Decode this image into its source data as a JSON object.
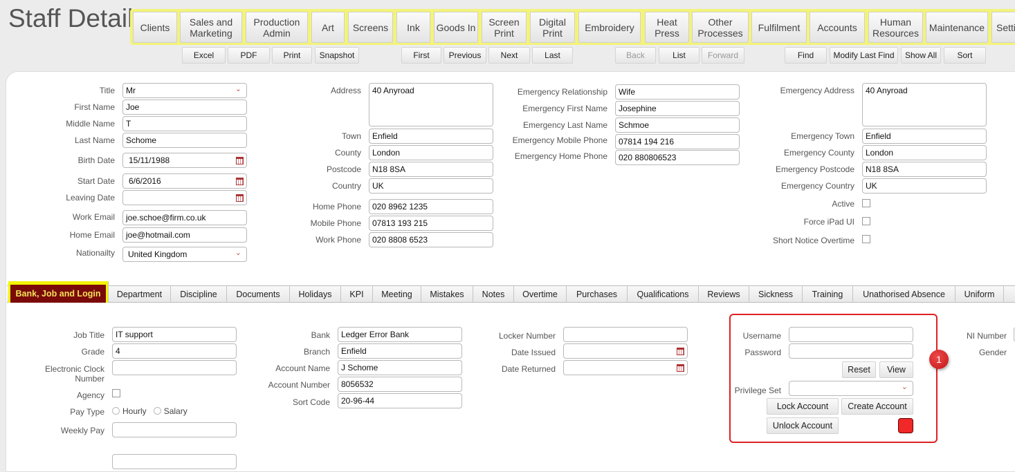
{
  "page_title": "Staff Detail",
  "nav": [
    "Clients",
    "Sales and Marketing",
    "Production Admin",
    "Art",
    "Screens",
    "Ink",
    "Goods In",
    "Screen Print",
    "Digital Print",
    "Embroidery",
    "Heat Press",
    "Other Processes",
    "Fulfilment",
    "Accounts",
    "Human Resources",
    "Maintenance",
    "Setti"
  ],
  "toolbar": {
    "export": [
      "Excel",
      "PDF",
      "Print",
      "Snapshot"
    ],
    "records": [
      "First",
      "Previous",
      "Next",
      "Last"
    ],
    "history": [
      "Back",
      "List",
      "Forward"
    ],
    "find": [
      "Find",
      "Modify Last Find",
      "Show All",
      "Sort"
    ]
  },
  "personal": {
    "title": {
      "label": "Title",
      "value": "Mr"
    },
    "first_name": {
      "label": "First Name",
      "value": "Joe"
    },
    "middle_name": {
      "label": "Middle Name",
      "value": "T"
    },
    "last_name": {
      "label": "Last Name",
      "value": "Schome"
    },
    "birth_date": {
      "label": "Birth Date",
      "value": "15/11/1988"
    },
    "start_date": {
      "label": "Start Date",
      "value": "6/6/2016"
    },
    "leaving_date": {
      "label": "Leaving Date",
      "value": ""
    },
    "work_email": {
      "label": "Work Email",
      "value": "joe.schoe@firm.co.uk"
    },
    "home_email": {
      "label": "Home Email",
      "value": "joe@hotmail.com"
    },
    "nationality": {
      "label": "Nationailty",
      "value": "United Kingdom"
    }
  },
  "address": {
    "address": {
      "label": "Address",
      "value": "40 Anyroad"
    },
    "town": {
      "label": "Town",
      "value": "Enfield"
    },
    "county": {
      "label": "County",
      "value": "London"
    },
    "postcode": {
      "label": "Postcode",
      "value": "N18 8SA"
    },
    "country": {
      "label": "Country",
      "value": "UK"
    },
    "home_phone": {
      "label": "Home Phone",
      "value": "020 8962 1235"
    },
    "mobile_phone": {
      "label": "Mobile Phone",
      "value": "07813 193 215"
    },
    "work_phone": {
      "label": "Work Phone",
      "value": "020 8808 6523"
    }
  },
  "emergency": {
    "relationship": {
      "label": "Emergency Relationship",
      "value": "Wife"
    },
    "first_name": {
      "label": "Emergency First Name",
      "value": "Josephine"
    },
    "last_name": {
      "label": "Emergency Last Name",
      "value": "Schmoe"
    },
    "mobile": {
      "label": "Emergency Mobile Phone",
      "value": "07814 194 216"
    },
    "home": {
      "label": "Emergency Home Phone",
      "value": "020 880806523"
    },
    "address": {
      "label": "Emergency Address",
      "value": "40 Anyroad"
    },
    "town": {
      "label": "Emergency Town",
      "value": "Enfield"
    },
    "county": {
      "label": "Emergency County",
      "value": "London"
    },
    "postcode": {
      "label": "Emergency Postcode",
      "value": "N18 8SA"
    },
    "country": {
      "label": "Emergency Country",
      "value": "UK"
    }
  },
  "flags": {
    "active": {
      "label": "Active",
      "checked": false
    },
    "force_ipad": {
      "label": "Force iPad UI",
      "checked": false
    },
    "short_notice": {
      "label": "Short Notice Overtime",
      "checked": false
    }
  },
  "tabs": [
    "Bank, Job and Login",
    "Department",
    "Discipline",
    "Documents",
    "Holidays",
    "KPI",
    "Meeting",
    "Mistakes",
    "Notes",
    "Overtime",
    "Purchases",
    "Qualifications",
    "Reviews",
    "Sickness",
    "Training",
    "Unathorised Absence",
    "Uniform"
  ],
  "job": {
    "job_title": {
      "label": "Job Title",
      "value": "IT support"
    },
    "grade": {
      "label": "Grade",
      "value": "4"
    },
    "clock": {
      "label": "Electronic Clock Number",
      "value": ""
    },
    "agency": {
      "label": "Agency",
      "checked": false
    },
    "pay_type": {
      "label": "Pay Type",
      "options": [
        "Hourly",
        "Salary"
      ]
    },
    "weekly_pay": {
      "label": "Weekly Pay",
      "value": ""
    }
  },
  "bank": {
    "bank": {
      "label": "Bank",
      "value": "Ledger Error Bank"
    },
    "branch": {
      "label": "Branch",
      "value": "Enfield"
    },
    "account_name": {
      "label": "Account Name",
      "value": "J Schome"
    },
    "account_number": {
      "label": "Account Number",
      "value": "8056532"
    },
    "sort_code": {
      "label": "Sort Code",
      "value": "20-96-44"
    }
  },
  "locker": {
    "number": {
      "label": "Locker Number",
      "value": ""
    },
    "issued": {
      "label": "Date Issued",
      "value": ""
    },
    "returned": {
      "label": "Date Returned",
      "value": ""
    }
  },
  "login": {
    "username": {
      "label": "Username",
      "value": ""
    },
    "password": {
      "label": "Password",
      "value": ""
    },
    "reset": "Reset",
    "view": "View",
    "privilege": {
      "label": "Privilege Set",
      "value": ""
    },
    "lock": "Lock Account",
    "create": "Create Account",
    "unlock": "Unlock Account",
    "status_color": "#f02828"
  },
  "other": {
    "ni": "NI Number",
    "gender": "Gender"
  },
  "annotation": "1"
}
